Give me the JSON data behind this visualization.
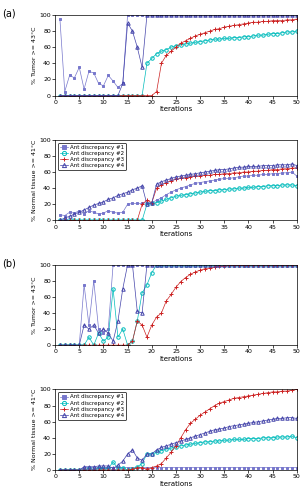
{
  "panel_a_tumor": {
    "ant1": {
      "y": [
        95,
        5,
        25,
        22,
        35,
        8,
        30,
        28,
        15,
        12,
        25,
        18,
        10,
        15,
        100,
        100,
        100,
        100,
        100,
        100,
        100,
        100,
        100,
        100,
        100,
        100,
        100,
        100,
        100,
        100,
        100,
        100,
        100,
        100,
        100,
        100,
        100,
        100,
        100,
        100,
        100,
        100,
        100,
        100,
        100,
        100,
        100,
        100,
        100,
        100
      ],
      "color": "#7777cc",
      "marker": "s"
    },
    "ant2": {
      "y": [
        0,
        0,
        0,
        0,
        0,
        0,
        0,
        0,
        0,
        0,
        0,
        0,
        0,
        0,
        0,
        0,
        0,
        0,
        40,
        46,
        52,
        55,
        57,
        60,
        62,
        63,
        64,
        65,
        66,
        67,
        68,
        69,
        70,
        70,
        71,
        71,
        72,
        72,
        73,
        73,
        74,
        75,
        75,
        76,
        77,
        77,
        78,
        79,
        79,
        80
      ],
      "color": "#00bbbb",
      "marker": "o"
    },
    "ant3": {
      "y": [
        0,
        0,
        0,
        0,
        0,
        0,
        0,
        0,
        0,
        0,
        0,
        0,
        0,
        0,
        0,
        0,
        0,
        0,
        0,
        0,
        5,
        40,
        50,
        55,
        60,
        65,
        68,
        71,
        74,
        76,
        78,
        80,
        82,
        83,
        85,
        86,
        87,
        88,
        89,
        90,
        91,
        91,
        92,
        92,
        93,
        93,
        93,
        94,
        94,
        95
      ],
      "color": "#cc2222",
      "marker": "+"
    },
    "ant4": {
      "y": [
        0,
        0,
        0,
        0,
        0,
        0,
        0,
        0,
        0,
        0,
        0,
        0,
        0,
        15,
        90,
        80,
        60,
        35,
        100,
        100,
        100,
        100,
        100,
        100,
        100,
        100,
        100,
        100,
        100,
        100,
        100,
        100,
        100,
        100,
        100,
        100,
        100,
        100,
        100,
        100,
        100,
        100,
        100,
        100,
        100,
        100,
        100,
        100,
        100,
        100
      ],
      "color": "#4444aa",
      "marker": "^"
    }
  },
  "panel_a_normal": {
    "ant1": {
      "y": [
        7,
        6,
        10,
        9,
        12,
        8,
        12,
        10,
        8,
        9,
        12,
        10,
        9,
        10,
        20,
        21,
        21,
        21,
        22,
        22,
        25,
        28,
        32,
        35,
        38,
        40,
        42,
        44,
        46,
        47,
        48,
        49,
        50,
        51,
        52,
        52,
        53,
        54,
        55,
        55,
        56,
        56,
        57,
        57,
        58,
        58,
        59,
        59,
        60,
        55
      ],
      "color": "#7777cc",
      "marker": "s"
    },
    "ant2": {
      "y": [
        0,
        0,
        0,
        0,
        0,
        0,
        0,
        0,
        0,
        0,
        0,
        0,
        0,
        0,
        0,
        0,
        0,
        0,
        20,
        21,
        22,
        24,
        26,
        28,
        30,
        31,
        32,
        33,
        34,
        35,
        36,
        37,
        37,
        38,
        38,
        39,
        39,
        40,
        40,
        41,
        41,
        42,
        42,
        43,
        43,
        43,
        44,
        44,
        44,
        43
      ],
      "color": "#00bbbb",
      "marker": "o"
    },
    "ant3": {
      "y": [
        0,
        0,
        0,
        0,
        0,
        0,
        0,
        0,
        0,
        0,
        0,
        0,
        0,
        0,
        0,
        0,
        0,
        20,
        25,
        22,
        40,
        44,
        47,
        49,
        51,
        52,
        53,
        54,
        55,
        55,
        56,
        56,
        57,
        57,
        58,
        58,
        59,
        59,
        60,
        60,
        61,
        61,
        62,
        62,
        63,
        63,
        64,
        64,
        65,
        65
      ],
      "color": "#cc2222",
      "marker": "+"
    },
    "ant4": {
      "y": [
        0,
        3,
        5,
        8,
        10,
        13,
        16,
        19,
        21,
        23,
        26,
        28,
        31,
        33,
        35,
        38,
        40,
        43,
        20,
        22,
        45,
        48,
        50,
        52,
        54,
        55,
        56,
        57,
        58,
        59,
        60,
        61,
        62,
        63,
        63,
        64,
        65,
        66,
        66,
        67,
        67,
        67,
        68,
        68,
        68,
        69,
        69,
        69,
        70,
        68
      ],
      "color": "#4444aa",
      "marker": "^"
    }
  },
  "panel_b_tumor": {
    "ant1": {
      "y": [
        0,
        0,
        0,
        0,
        0,
        75,
        25,
        80,
        20,
        15,
        20,
        100,
        100,
        100,
        100,
        100,
        100,
        100,
        100,
        100,
        100,
        100,
        100,
        100,
        100,
        100,
        100,
        100,
        100,
        100,
        100,
        100,
        100,
        100,
        100,
        100,
        100,
        100,
        100,
        100,
        100,
        100,
        100,
        100,
        100,
        100,
        100,
        100,
        100,
        100
      ],
      "color": "#7777cc",
      "marker": "s"
    },
    "ant2": {
      "y": [
        0,
        0,
        0,
        0,
        0,
        0,
        10,
        0,
        15,
        5,
        10,
        70,
        10,
        20,
        0,
        5,
        30,
        65,
        75,
        90,
        100,
        100,
        100,
        100,
        100,
        100,
        100,
        100,
        100,
        100,
        100,
        100,
        100,
        100,
        100,
        100,
        100,
        100,
        100,
        100,
        100,
        100,
        100,
        100,
        100,
        100,
        100,
        100,
        100,
        100
      ],
      "color": "#00bbbb",
      "marker": "o"
    },
    "ant3": {
      "y": [
        0,
        0,
        0,
        0,
        0,
        0,
        0,
        0,
        0,
        0,
        0,
        0,
        0,
        0,
        0,
        5,
        30,
        25,
        10,
        25,
        35,
        40,
        55,
        63,
        72,
        79,
        84,
        88,
        91,
        93,
        95,
        96,
        97,
        98,
        98,
        99,
        99,
        99,
        99,
        100,
        100,
        100,
        100,
        100,
        100,
        100,
        100,
        100,
        100,
        100
      ],
      "color": "#cc2222",
      "marker": "+"
    },
    "ant4": {
      "y": [
        0,
        0,
        0,
        0,
        0,
        25,
        20,
        25,
        15,
        20,
        15,
        5,
        30,
        70,
        100,
        100,
        42,
        40,
        100,
        100,
        100,
        100,
        100,
        100,
        100,
        100,
        100,
        100,
        100,
        100,
        100,
        100,
        100,
        100,
        100,
        100,
        100,
        100,
        100,
        100,
        100,
        100,
        100,
        100,
        100,
        100,
        100,
        100,
        100,
        100
      ],
      "color": "#4444aa",
      "marker": "^"
    }
  },
  "panel_b_normal": {
    "ant1": {
      "y": [
        0,
        0,
        0,
        0,
        0,
        3,
        3,
        3,
        3,
        3,
        3,
        3,
        3,
        3,
        3,
        3,
        3,
        3,
        3,
        3,
        3,
        3,
        3,
        3,
        3,
        3,
        3,
        3,
        3,
        3,
        3,
        3,
        3,
        3,
        3,
        3,
        3,
        3,
        3,
        3,
        3,
        3,
        3,
        3,
        3,
        3,
        3,
        3,
        3,
        3
      ],
      "color": "#7777cc",
      "marker": "s"
    },
    "ant2": {
      "y": [
        0,
        0,
        0,
        0,
        0,
        0,
        2,
        0,
        3,
        1,
        2,
        10,
        2,
        3,
        0,
        1,
        4,
        8,
        20,
        20,
        22,
        24,
        26,
        27,
        29,
        30,
        31,
        32,
        33,
        34,
        35,
        35,
        36,
        36,
        37,
        37,
        38,
        38,
        38,
        39,
        39,
        39,
        40,
        40,
        40,
        41,
        41,
        41,
        42,
        40
      ],
      "color": "#00bbbb",
      "marker": "o"
    },
    "ant3": {
      "y": [
        0,
        0,
        0,
        0,
        0,
        0,
        0,
        0,
        0,
        0,
        0,
        0,
        0,
        0,
        0,
        1,
        3,
        3,
        1,
        3,
        5,
        8,
        15,
        22,
        30,
        40,
        50,
        58,
        63,
        68,
        72,
        76,
        80,
        83,
        85,
        87,
        89,
        90,
        91,
        92,
        93,
        94,
        95,
        96,
        97,
        97,
        98,
        98,
        99,
        100
      ],
      "color": "#cc2222",
      "marker": "+"
    },
    "ant4": {
      "y": [
        0,
        0,
        0,
        0,
        0,
        4,
        4,
        4,
        5,
        5,
        5,
        2,
        6,
        11,
        20,
        25,
        15,
        12,
        20,
        20,
        25,
        28,
        30,
        32,
        34,
        36,
        38,
        40,
        42,
        44,
        46,
        48,
        50,
        51,
        52,
        54,
        55,
        56,
        57,
        58,
        59,
        60,
        61,
        62,
        63,
        64,
        64,
        65,
        65,
        64
      ],
      "color": "#4444aa",
      "marker": "^"
    }
  },
  "legend_labels": [
    "Ant discrepancy #1",
    "Ant discrepancy #2",
    "Ant discrepancy #3",
    "Ant discrepancy #4"
  ],
  "legend_markers": [
    "s",
    "o",
    "+",
    "^"
  ],
  "legend_colors": [
    "#7777cc",
    "#00bbbb",
    "#cc2222",
    "#4444aa"
  ]
}
